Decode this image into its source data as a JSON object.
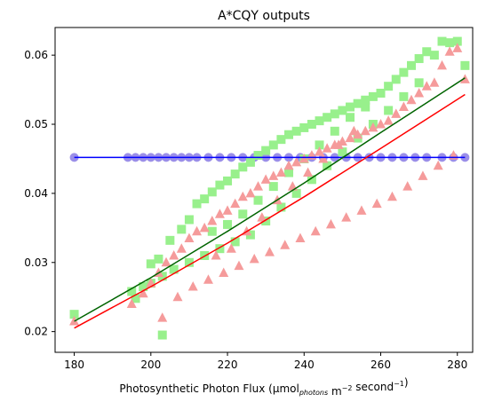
{
  "chart_data": {
    "type": "scatter",
    "title": "A*CQY outputs",
    "xlabel": {
      "parts": [
        {
          "text": "Photosynthetic Photon Flux (µmol"
        },
        {
          "text": "photons",
          "style": "sub-italic"
        },
        {
          "text": " m"
        },
        {
          "text": "−2",
          "style": "sup"
        },
        {
          "text": " second"
        },
        {
          "text": "−1",
          "style": "sup"
        },
        {
          "text": ")"
        }
      ]
    },
    "ylabel": "",
    "xlim": [
      175,
      284
    ],
    "ylim": [
      0.017,
      0.064
    ],
    "xticks": [
      180,
      200,
      220,
      240,
      260,
      280
    ],
    "yticks": [
      0.02,
      0.03,
      0.04,
      0.05,
      0.06
    ],
    "ytick_labels": [
      "0.02",
      "0.03",
      "0.04",
      "0.05",
      "0.06"
    ],
    "grid": false,
    "series": [
      {
        "kind": "points",
        "marker": "circle",
        "color": "#9b8fe8",
        "x": [
          180,
          194,
          196,
          198,
          200,
          202,
          204,
          206,
          208,
          210,
          212,
          215,
          218,
          221,
          224,
          227,
          230,
          233,
          236,
          239,
          242,
          245,
          248,
          251,
          254,
          257,
          260,
          263,
          266,
          269,
          272,
          276,
          279,
          282
        ],
        "y": [
          0.0452,
          0.0452,
          0.0452,
          0.0452,
          0.0452,
          0.0452,
          0.0452,
          0.0452,
          0.0452,
          0.0452,
          0.0452,
          0.0452,
          0.0452,
          0.0452,
          0.0452,
          0.0452,
          0.0452,
          0.0452,
          0.0452,
          0.0452,
          0.0452,
          0.0452,
          0.0452,
          0.0452,
          0.0452,
          0.0452,
          0.0452,
          0.0452,
          0.0452,
          0.0452,
          0.0452,
          0.0452,
          0.0452,
          0.0452
        ]
      },
      {
        "kind": "points",
        "marker": "square",
        "color": "#98f08c",
        "x": [
          180,
          195,
          198,
          200,
          202,
          203,
          205,
          208,
          210,
          212,
          214,
          216,
          218,
          220,
          222,
          224,
          226,
          228,
          230,
          232,
          234,
          236,
          238,
          240,
          242,
          244,
          246,
          248,
          250,
          252,
          254,
          256,
          258,
          260,
          262,
          264,
          266,
          268,
          270,
          272,
          274,
          276,
          278,
          280,
          282,
          270,
          266,
          262,
          258,
          254,
          250,
          246,
          242,
          238,
          234,
          230,
          226,
          222,
          218,
          214,
          210,
          206,
          203,
          200,
          196,
          232,
          236,
          240,
          244,
          228,
          224,
          248,
          252,
          256,
          220,
          216
        ],
        "y": [
          0.0225,
          0.0258,
          0.0265,
          0.0298,
          0.0305,
          0.0195,
          0.0332,
          0.0348,
          0.0362,
          0.0385,
          0.0392,
          0.0402,
          0.0412,
          0.0418,
          0.0428,
          0.0438,
          0.0445,
          0.0455,
          0.0462,
          0.047,
          0.0478,
          0.0485,
          0.049,
          0.0495,
          0.05,
          0.0505,
          0.051,
          0.0515,
          0.052,
          0.0525,
          0.053,
          0.0535,
          0.054,
          0.0545,
          0.0555,
          0.0565,
          0.0575,
          0.0585,
          0.0595,
          0.0605,
          0.06,
          0.062,
          0.0618,
          0.062,
          0.0585,
          0.056,
          0.054,
          0.052,
          0.05,
          0.048,
          0.046,
          0.044,
          0.042,
          0.04,
          0.038,
          0.036,
          0.034,
          0.033,
          0.032,
          0.031,
          0.03,
          0.029,
          0.028,
          0.027,
          0.0248,
          0.041,
          0.043,
          0.045,
          0.047,
          0.039,
          0.037,
          0.049,
          0.051,
          0.0525,
          0.0355,
          0.0345
        ]
      },
      {
        "kind": "points",
        "marker": "triangle",
        "color": "#f59b9b",
        "x": [
          180,
          195,
          198,
          200,
          202,
          204,
          206,
          208,
          210,
          212,
          214,
          216,
          218,
          220,
          222,
          224,
          226,
          228,
          230,
          232,
          234,
          236,
          238,
          240,
          242,
          244,
          246,
          248,
          250,
          252,
          254,
          256,
          258,
          260,
          262,
          264,
          266,
          268,
          270,
          272,
          274,
          276,
          278,
          280,
          282,
          203,
          207,
          211,
          215,
          219,
          223,
          227,
          231,
          235,
          239,
          243,
          247,
          251,
          255,
          259,
          263,
          267,
          271,
          275,
          279,
          233,
          237,
          241,
          245,
          229,
          225,
          249,
          253,
          221,
          217
        ],
        "y": [
          0.0215,
          0.024,
          0.0255,
          0.027,
          0.0285,
          0.03,
          0.031,
          0.032,
          0.0335,
          0.0345,
          0.035,
          0.036,
          0.037,
          0.0375,
          0.0385,
          0.0395,
          0.04,
          0.041,
          0.042,
          0.0425,
          0.043,
          0.044,
          0.0445,
          0.045,
          0.0455,
          0.046,
          0.0465,
          0.047,
          0.0475,
          0.048,
          0.0485,
          0.049,
          0.0495,
          0.05,
          0.0505,
          0.0515,
          0.0525,
          0.0535,
          0.0545,
          0.0555,
          0.056,
          0.0585,
          0.0605,
          0.061,
          0.0565,
          0.022,
          0.025,
          0.0265,
          0.0275,
          0.0285,
          0.0295,
          0.0305,
          0.0315,
          0.0325,
          0.0335,
          0.0345,
          0.0355,
          0.0365,
          0.0375,
          0.0385,
          0.0395,
          0.041,
          0.0425,
          0.044,
          0.0455,
          0.039,
          0.041,
          0.043,
          0.045,
          0.0365,
          0.0345,
          0.047,
          0.049,
          0.032,
          0.031
        ]
      },
      {
        "kind": "line",
        "color": "#0000ff",
        "x": [
          180,
          282
        ],
        "y": [
          0.0452,
          0.0452
        ]
      },
      {
        "kind": "line",
        "color": "#006400",
        "x": [
          180,
          200,
          220,
          240,
          260,
          282
        ],
        "y": [
          0.0215,
          0.0278,
          0.0345,
          0.0415,
          0.0488,
          0.0567
        ]
      },
      {
        "kind": "line",
        "color": "#ff0000",
        "x": [
          180,
          200,
          220,
          240,
          260,
          282
        ],
        "y": [
          0.0205,
          0.0265,
          0.0328,
          0.0395,
          0.0465,
          0.0543
        ]
      }
    ]
  }
}
